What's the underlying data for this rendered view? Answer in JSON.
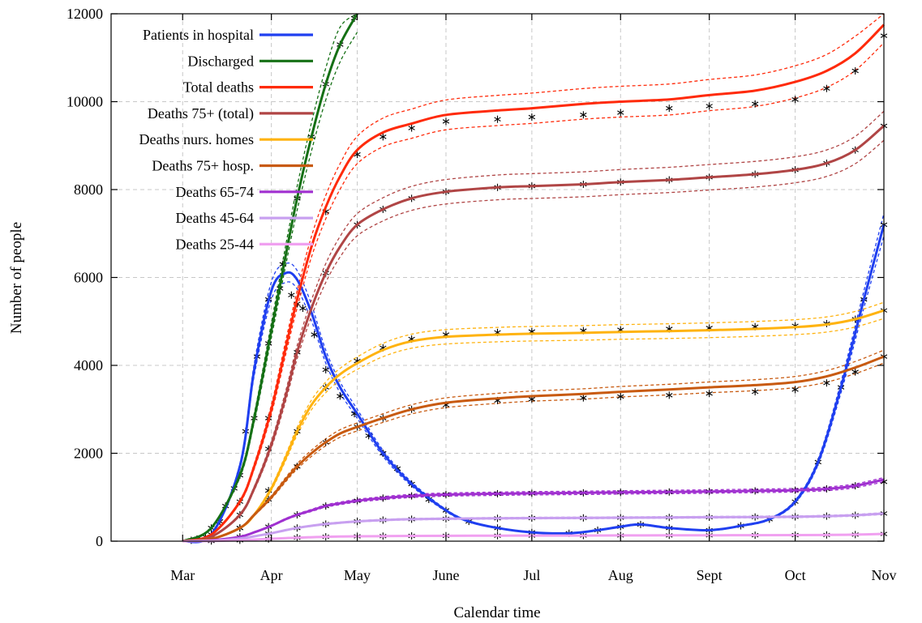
{
  "chart_data": {
    "type": "line",
    "title": "",
    "xlabel": "Calendar time",
    "ylabel": "Number of people",
    "x_unit": "days since 1 Mar",
    "xlim": [
      -25,
      245
    ],
    "ylim": [
      0,
      12000
    ],
    "x_ticks": [
      {
        "label": "Mar",
        "x": 0
      },
      {
        "label": "Apr",
        "x": 31
      },
      {
        "label": "May",
        "x": 61
      },
      {
        "label": "June",
        "x": 92
      },
      {
        "label": "Jul",
        "x": 122
      },
      {
        "label": "Aug",
        "x": 153
      },
      {
        "label": "Sept",
        "x": 184
      },
      {
        "label": "Oct",
        "x": 214
      },
      {
        "label": "Nov",
        "x": 245
      }
    ],
    "y_ticks": [
      0,
      2000,
      4000,
      6000,
      8000,
      10000,
      12000
    ],
    "grid": true,
    "legend_position": "top-left",
    "series": [
      {
        "name": "Patients in hospital",
        "color": "#1f3ff0",
        "x": [
          0,
          10,
          20,
          25,
          31,
          36,
          40,
          45,
          50,
          55,
          61,
          70,
          80,
          92,
          100,
          110,
          122,
          135,
          145,
          153,
          160,
          170,
          184,
          195,
          205,
          214,
          222,
          230,
          238,
          245
        ],
        "values": [
          0,
          150,
          1700,
          3900,
          5700,
          6100,
          5950,
          5200,
          4200,
          3500,
          2900,
          2000,
          1300,
          700,
          450,
          300,
          200,
          180,
          250,
          330,
          380,
          300,
          250,
          350,
          500,
          900,
          1800,
          3500,
          5500,
          7200
        ]
      },
      {
        "name": "Discharged",
        "color": "#157015",
        "x": [
          0,
          10,
          20,
          25,
          31,
          36,
          40,
          45,
          50,
          55,
          61
        ],
        "values": [
          0,
          300,
          1500,
          2800,
          4800,
          6500,
          7800,
          9200,
          10400,
          11300,
          12000
        ]
      },
      {
        "name": "Total deaths",
        "color": "#ff2a0a",
        "x": [
          0,
          10,
          20,
          25,
          31,
          36,
          40,
          45,
          50,
          55,
          61,
          70,
          80,
          92,
          110,
          122,
          140,
          153,
          170,
          184,
          200,
          214,
          225,
          235,
          245
        ],
        "values": [
          0,
          150,
          900,
          1700,
          3000,
          4400,
          5500,
          6700,
          7600,
          8300,
          8900,
          9300,
          9500,
          9700,
          9800,
          9850,
          9950,
          10000,
          10050,
          10150,
          10250,
          10450,
          10700,
          11100,
          11750
        ]
      },
      {
        "name": "Deaths 75+ (total)",
        "color": "#b04545",
        "x": [
          0,
          10,
          20,
          25,
          31,
          36,
          40,
          45,
          50,
          55,
          61,
          70,
          80,
          92,
          110,
          122,
          140,
          153,
          170,
          184,
          200,
          214,
          225,
          235,
          245
        ],
        "values": [
          0,
          100,
          600,
          1200,
          2200,
          3300,
          4300,
          5300,
          6100,
          6700,
          7200,
          7550,
          7800,
          7950,
          8050,
          8080,
          8120,
          8170,
          8220,
          8280,
          8350,
          8450,
          8600,
          8900,
          9450
        ]
      },
      {
        "name": "Deaths nurs. homes",
        "color": "#ffb310",
        "x": [
          0,
          10,
          20,
          25,
          31,
          36,
          40,
          45,
          50,
          55,
          61,
          70,
          80,
          92,
          110,
          122,
          140,
          153,
          170,
          184,
          200,
          214,
          225,
          235,
          245
        ],
        "values": [
          0,
          50,
          300,
          600,
          1200,
          1900,
          2500,
          3100,
          3500,
          3800,
          4050,
          4350,
          4550,
          4650,
          4700,
          4720,
          4740,
          4760,
          4780,
          4800,
          4830,
          4870,
          4930,
          5050,
          5250
        ]
      },
      {
        "name": "Deaths 75+ hosp.",
        "color": "#c85a10",
        "x": [
          0,
          10,
          20,
          25,
          31,
          36,
          40,
          45,
          50,
          55,
          61,
          70,
          80,
          92,
          110,
          122,
          140,
          153,
          170,
          184,
          200,
          214,
          225,
          235,
          245
        ],
        "values": [
          0,
          50,
          300,
          600,
          1000,
          1400,
          1700,
          2000,
          2250,
          2450,
          2600,
          2800,
          3000,
          3150,
          3250,
          3300,
          3350,
          3400,
          3450,
          3500,
          3550,
          3620,
          3750,
          3950,
          4200
        ]
      },
      {
        "name": "Deaths 65-74",
        "color": "#a030d0",
        "x": [
          0,
          10,
          20,
          25,
          31,
          36,
          40,
          45,
          50,
          55,
          61,
          70,
          80,
          92,
          110,
          122,
          140,
          153,
          170,
          184,
          200,
          214,
          225,
          235,
          245
        ],
        "values": [
          0,
          20,
          100,
          200,
          350,
          500,
          600,
          700,
          800,
          860,
          920,
          980,
          1030,
          1060,
          1080,
          1090,
          1100,
          1110,
          1120,
          1130,
          1145,
          1160,
          1190,
          1260,
          1400
        ]
      },
      {
        "name": "Deaths 45-64",
        "color": "#c8a0f0",
        "x": [
          0,
          10,
          20,
          25,
          31,
          36,
          40,
          45,
          50,
          55,
          61,
          70,
          80,
          92,
          110,
          122,
          140,
          153,
          170,
          184,
          200,
          214,
          225,
          235,
          245
        ],
        "values": [
          0,
          10,
          60,
          110,
          180,
          250,
          300,
          350,
          390,
          420,
          450,
          480,
          500,
          510,
          520,
          525,
          530,
          535,
          540,
          545,
          550,
          555,
          570,
          590,
          630
        ]
      },
      {
        "name": "Deaths 25-44",
        "color": "#f0a0f0",
        "x": [
          0,
          10,
          20,
          25,
          31,
          36,
          40,
          45,
          50,
          55,
          61,
          70,
          80,
          92,
          110,
          122,
          140,
          153,
          170,
          184,
          200,
          214,
          225,
          235,
          245
        ],
        "values": [
          0,
          5,
          20,
          35,
          55,
          70,
          80,
          90,
          100,
          105,
          110,
          115,
          120,
          122,
          125,
          127,
          128,
          130,
          132,
          134,
          136,
          138,
          142,
          150,
          165
        ]
      }
    ],
    "observed_markers": [
      {
        "series": "Patients in hospital",
        "x": [
          3,
          8,
          13,
          18,
          22,
          26,
          30,
          34,
          38,
          42,
          46,
          50,
          55,
          60,
          65,
          70,
          75,
          80,
          86,
          92,
          100,
          110,
          122,
          135,
          145,
          153,
          160,
          170,
          184,
          195,
          205,
          214,
          222,
          230,
          238,
          245
        ],
        "values": [
          20,
          100,
          450,
          1200,
          2500,
          4200,
          5500,
          5750,
          5600,
          5300,
          4700,
          3900,
          3300,
          2900,
          2400,
          2000,
          1650,
          1300,
          950,
          700,
          450,
          300,
          200,
          180,
          250,
          330,
          380,
          300,
          250,
          350,
          500,
          900,
          1800,
          3500,
          5500,
          7200
        ]
      },
      {
        "series": "Discharged",
        "x": [
          5,
          10,
          15,
          20,
          25,
          30,
          35,
          40,
          45,
          50,
          55,
          60
        ],
        "values": [
          50,
          300,
          800,
          1500,
          2800,
          4500,
          6300,
          7800,
          9200,
          10400,
          11300,
          11900
        ]
      },
      {
        "series": "Total deaths",
        "x": [
          10,
          20,
          30,
          40,
          50,
          61,
          70,
          80,
          92,
          110,
          122,
          140,
          153,
          170,
          184,
          200,
          214,
          225,
          235,
          245
        ],
        "values": [
          150,
          900,
          2800,
          5400,
          7500,
          8800,
          9200,
          9400,
          9550,
          9600,
          9650,
          9700,
          9750,
          9850,
          9900,
          9950,
          10050,
          10300,
          10700,
          11500
        ]
      },
      {
        "series": "Deaths 75+ (total)",
        "x": [
          10,
          20,
          30,
          40,
          50,
          61,
          70,
          80,
          92,
          110,
          122,
          140,
          153,
          170,
          184,
          200,
          214,
          225,
          235,
          245
        ],
        "values": [
          100,
          600,
          2100,
          4300,
          6100,
          7200,
          7550,
          7800,
          7950,
          8050,
          8080,
          8120,
          8170,
          8220,
          8280,
          8350,
          8450,
          8600,
          8900,
          9450
        ]
      },
      {
        "series": "Deaths nurs. homes",
        "x": [
          10,
          20,
          30,
          40,
          50,
          61,
          70,
          80,
          92,
          110,
          122,
          140,
          153,
          170,
          184,
          200,
          214,
          225,
          235,
          245
        ],
        "values": [
          50,
          300,
          1150,
          2500,
          3500,
          4100,
          4400,
          4600,
          4700,
          4750,
          4770,
          4790,
          4810,
          4830,
          4850,
          4880,
          4900,
          4950,
          5050,
          5250
        ]
      },
      {
        "series": "Deaths 75+ hosp.",
        "x": [
          10,
          20,
          30,
          40,
          50,
          61,
          70,
          80,
          92,
          110,
          122,
          140,
          153,
          170,
          184,
          200,
          214,
          225,
          235,
          245
        ],
        "values": [
          50,
          300,
          950,
          1700,
          2250,
          2600,
          2800,
          3000,
          3100,
          3200,
          3230,
          3260,
          3290,
          3320,
          3360,
          3400,
          3450,
          3600,
          3850,
          4200
        ]
      },
      {
        "series": "Deaths 65-74",
        "x": [
          10,
          20,
          30,
          40,
          50,
          61,
          70,
          80,
          92,
          110,
          122,
          140,
          153,
          170,
          184,
          200,
          214,
          225,
          235,
          245
        ],
        "values": [
          20,
          100,
          330,
          600,
          800,
          920,
          980,
          1030,
          1060,
          1080,
          1090,
          1100,
          1110,
          1120,
          1130,
          1145,
          1160,
          1190,
          1260,
          1350
        ]
      },
      {
        "series": "Deaths 45-64",
        "x": [
          10,
          20,
          30,
          40,
          50,
          61,
          70,
          80,
          92,
          110,
          122,
          140,
          153,
          170,
          184,
          200,
          214,
          225,
          235,
          245
        ],
        "values": [
          10,
          60,
          170,
          300,
          390,
          450,
          480,
          500,
          510,
          520,
          525,
          530,
          535,
          540,
          545,
          550,
          555,
          570,
          590,
          630
        ]
      },
      {
        "series": "Deaths 25-44",
        "x": [
          10,
          20,
          30,
          40,
          50,
          61,
          70,
          80,
          92,
          110,
          122,
          140,
          153,
          170,
          184,
          200,
          214,
          225,
          235,
          245
        ],
        "values": [
          5,
          20,
          50,
          80,
          100,
          110,
          115,
          120,
          122,
          125,
          127,
          128,
          130,
          132,
          134,
          136,
          138,
          142,
          150,
          165
        ]
      }
    ]
  }
}
